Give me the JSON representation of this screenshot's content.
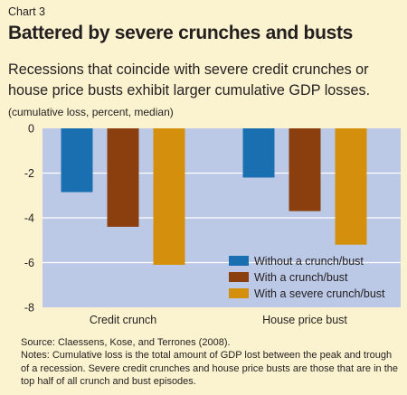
{
  "header": {
    "chart_number": "Chart 3",
    "title": "Battered by severe crunches and busts",
    "subtitle": "Recessions that coincide with severe credit crunches or house price busts exhibit larger cumulative GDP losses.",
    "unit": "(cumulative loss, percent, median)"
  },
  "footer": {
    "source": "Source: Claessens, Kose, and Terrones (2008).",
    "notes": "Notes: Cumulative loss is the total amount of GDP lost between the peak and trough of a recession. Severe credit crunches and house price busts are those that are in the top half of all crunch and bust episodes."
  },
  "colors": {
    "plot_background": "#bcc9e6",
    "gridline": "#ffffff"
  },
  "chart_data": {
    "type": "bar",
    "title": "Battered by severe crunches and busts",
    "ylabel": "(cumulative loss, percent, median)",
    "categories": [
      "Credit crunch",
      "House price bust"
    ],
    "series": [
      {
        "name": "Without a crunch/bust",
        "color": "#1a6fb0",
        "values": [
          -2.85,
          -2.2
        ]
      },
      {
        "name": "With a crunch/bust",
        "color": "#8b3f0f",
        "values": [
          -4.4,
          -3.7
        ]
      },
      {
        "name": "With a severe crunch/bust",
        "color": "#d4900c",
        "values": [
          -6.1,
          -5.2
        ]
      }
    ],
    "ylim": [
      -8,
      0
    ],
    "yticks": [
      0,
      -2,
      -4,
      -6,
      -8
    ],
    "ytick_labels": [
      "0",
      "-2",
      "-4",
      "-6",
      "-8"
    ],
    "grid": true,
    "legend_position": "bottom-right"
  }
}
